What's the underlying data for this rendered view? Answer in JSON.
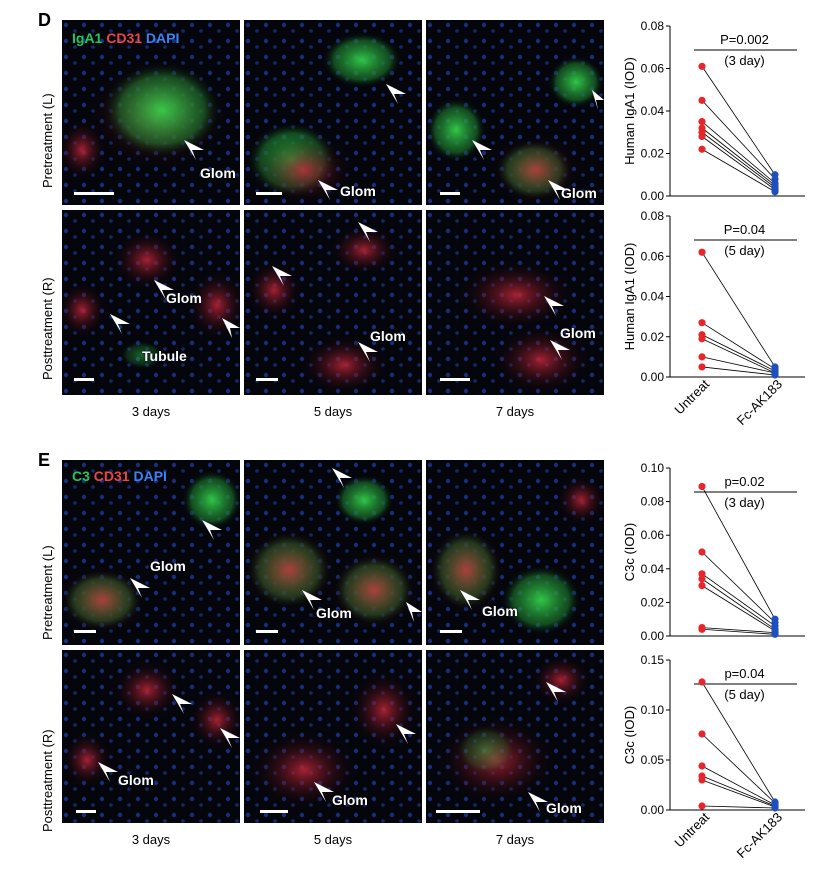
{
  "panel_d": {
    "letter": "D",
    "legend": [
      {
        "text": "IgA1",
        "color": "#22c55e"
      },
      {
        "text": "CD31",
        "color": "#ef4444"
      },
      {
        "text": "DAPI",
        "color": "#3b82f6"
      }
    ],
    "row_labels": [
      "Pretreatment (L)",
      "Posttreatment (R)"
    ],
    "col_labels": [
      "3 days",
      "5 days",
      "7 days"
    ],
    "tags": {
      "glom": "Glom",
      "tubule": "Tubule"
    }
  },
  "panel_e": {
    "letter": "E",
    "legend": [
      {
        "text": "C3",
        "color": "#22c55e"
      },
      {
        "text": "CD31",
        "color": "#ef4444"
      },
      {
        "text": "DAPI",
        "color": "#3b82f6"
      }
    ],
    "row_labels": [
      "Pretreatment (L)",
      "Posttreatment (R)"
    ],
    "col_labels": [
      "3 days",
      "5 days",
      "7 days"
    ],
    "tags": {
      "glom": "Glom"
    }
  },
  "chart_data": [
    {
      "type": "scatter",
      "ylabel": "Human IgA1 (IOD)",
      "ylim": [
        0,
        0.08
      ],
      "yticks": [
        "0.00",
        "0.02",
        "0.04",
        "0.06",
        "0.08"
      ],
      "pvalue": "P=0.002",
      "duration": "(3 day)",
      "categories": [
        "Untreat",
        "Fc-AK183"
      ],
      "pairs": [
        [
          0.061,
          0.01
        ],
        [
          0.045,
          0.008
        ],
        [
          0.035,
          0.006
        ],
        [
          0.032,
          0.005
        ],
        [
          0.03,
          0.004
        ],
        [
          0.028,
          0.003
        ],
        [
          0.022,
          0.002
        ]
      ]
    },
    {
      "type": "scatter",
      "ylabel": "Human IgA1 (IOD)",
      "ylim": [
        0,
        0.08
      ],
      "yticks": [
        "0.00",
        "0.02",
        "0.04",
        "0.06",
        "0.08"
      ],
      "pvalue": "P=0.04",
      "duration": "(5 day)",
      "categories": [
        "Untreat",
        "Fc-AK183"
      ],
      "pairs": [
        [
          0.062,
          0.005
        ],
        [
          0.027,
          0.004
        ],
        [
          0.021,
          0.003
        ],
        [
          0.019,
          0.002
        ],
        [
          0.01,
          0.002
        ],
        [
          0.005,
          0.001
        ]
      ]
    },
    {
      "type": "scatter",
      "ylabel": "C3c (IOD)",
      "ylim": [
        0,
        0.1
      ],
      "yticks": [
        "0.00",
        "0.02",
        "0.04",
        "0.06",
        "0.08",
        "0.10"
      ],
      "pvalue": "p=0.02",
      "duration": "(3 day)",
      "categories": [
        "Untreat",
        "Fc-AK183"
      ],
      "pairs": [
        [
          0.089,
          0.01
        ],
        [
          0.05,
          0.008
        ],
        [
          0.037,
          0.006
        ],
        [
          0.034,
          0.004
        ],
        [
          0.03,
          0.003
        ],
        [
          0.005,
          0.002
        ],
        [
          0.004,
          0.001
        ]
      ]
    },
    {
      "type": "scatter",
      "ylabel": "C3c (IOD)",
      "ylim": [
        0,
        0.15
      ],
      "yticks": [
        "0.00",
        "0.05",
        "0.10",
        "0.15"
      ],
      "pvalue": "p=0.04",
      "duration": "(5 day)",
      "categories": [
        "Untreat",
        "Fc-AK183"
      ],
      "pairs": [
        [
          0.128,
          0.008
        ],
        [
          0.076,
          0.007
        ],
        [
          0.044,
          0.005
        ],
        [
          0.034,
          0.004
        ],
        [
          0.03,
          0.003
        ],
        [
          0.004,
          0.002
        ]
      ]
    }
  ],
  "colors": {
    "untreat": "#e8262a",
    "treated": "#1f4fbf"
  }
}
